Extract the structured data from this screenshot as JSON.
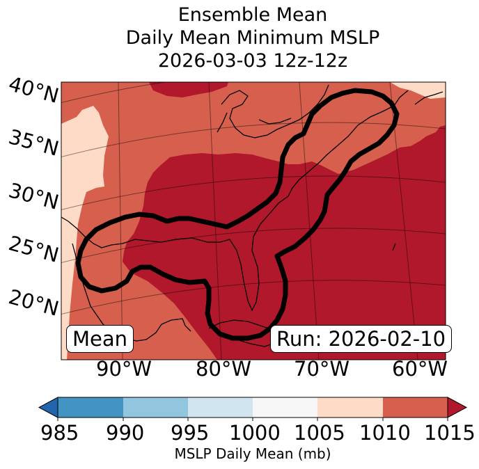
{
  "title": {
    "line1": "Ensemble Mean",
    "line2": "Daily Mean Minimum MSLP",
    "line3": "2026-03-03 12z-12z"
  },
  "map": {
    "lat_labels": [
      "40°N",
      "35°N",
      "30°N",
      "25°N",
      "20°N"
    ],
    "lon_labels": [
      "90°W",
      "80°W",
      "70°W",
      "60°W"
    ],
    "legend_box": "Mean",
    "run_box": "Run: 2026-02-10",
    "colors": {
      "band_1005_1010": "#fddbc7",
      "band_1010_1015": "#d6604d",
      "band_over_1015": "#b2182b",
      "contour": "#000000"
    }
  },
  "colorbar": {
    "ticks": [
      "985",
      "990",
      "995",
      "1000",
      "1005",
      "1010",
      "1015"
    ],
    "label": "MSLP Daily Mean (mb)",
    "colors": [
      "#2166ac",
      "#4393c3",
      "#92c5de",
      "#d1e5f0",
      "#f7f7f7",
      "#fddbc7",
      "#d6604d",
      "#b2182b"
    ]
  }
}
